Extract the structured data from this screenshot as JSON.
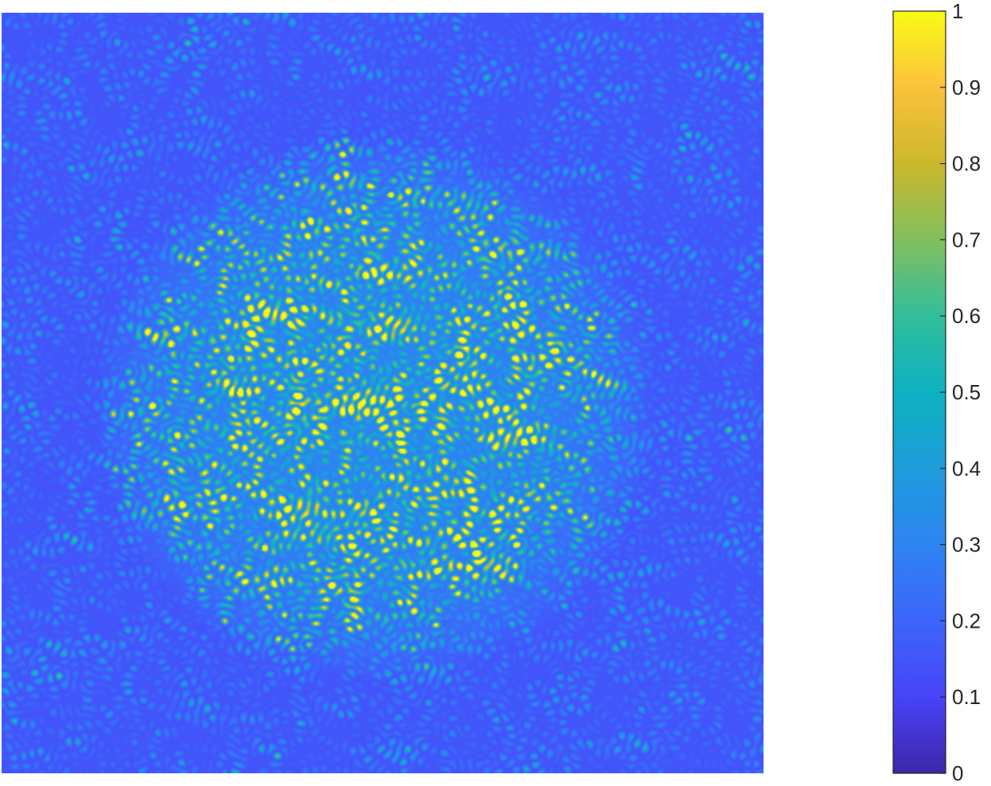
{
  "chart_data": {
    "type": "heatmap",
    "title": "",
    "xlabel": "",
    "ylabel": "",
    "colormap": "parula",
    "value_range": [
      0,
      1
    ],
    "colorbar": {
      "ticks": [
        0,
        0.1,
        0.2,
        0.3,
        0.4,
        0.5,
        0.6,
        0.7,
        0.8,
        0.9,
        1
      ],
      "tick_labels": [
        "0",
        "0.1",
        "0.2",
        "0.3",
        "0.4",
        "0.5",
        "0.6",
        "0.7",
        "0.8",
        "0.9",
        "1"
      ]
    },
    "colormap_stops": [
      "#3e26a8",
      "#4743f8",
      "#3d65fb",
      "#2d84f2",
      "#1e9ddb",
      "#0db2c1",
      "#32be9b",
      "#82bf5e",
      "#cbb82b",
      "#fbc23c",
      "#f9fb14"
    ],
    "background_level": 0.15,
    "grid": false,
    "legend": "colorbar-right"
  }
}
